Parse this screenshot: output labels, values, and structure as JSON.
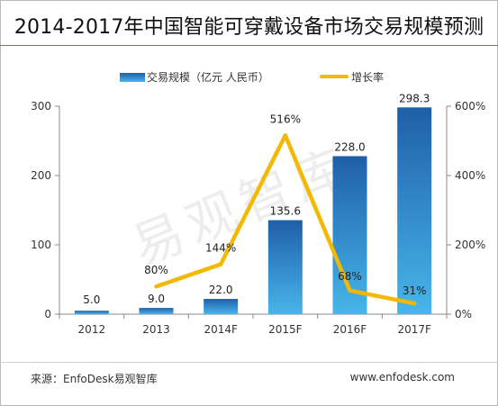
{
  "header": {
    "title": "2014-2017年中国智能可穿戴设备市场交易规模预测"
  },
  "footer": {
    "source": "来源：EnfoDesk易观智库",
    "site": "www.enfodesk.com"
  },
  "watermark": "易观智库",
  "colors": {
    "bar_top": "#1f5fa8",
    "bar_bottom": "#47b6ea",
    "line": "#f5b800",
    "divider": "#2f86c9"
  },
  "chart_data": {
    "type": "bar",
    "title": "2014-2017年中国智能可穿戴设备市场交易规模预测",
    "categories": [
      "2012",
      "2013",
      "2014F",
      "2015F",
      "2016F",
      "2017F"
    ],
    "series": [
      {
        "name": "交易规模（亿元 人民币）",
        "type": "bar",
        "axis": "left",
        "values": [
          5.0,
          9.0,
          22.0,
          135.6,
          228.0,
          298.3
        ],
        "labels": [
          "5.0",
          "9.0",
          "22.0",
          "135.6",
          "228.0",
          "298.3"
        ]
      },
      {
        "name": "增长率",
        "type": "line",
        "axis": "right",
        "values": [
          null,
          80,
          144,
          516,
          68,
          31
        ],
        "labels": [
          "",
          "80%",
          "144%",
          "516%",
          "68%",
          "31%"
        ]
      }
    ],
    "y_left": {
      "min": 0,
      "max": 300,
      "ticks": [
        "0",
        "100",
        "200",
        "300"
      ]
    },
    "y_right": {
      "min": 0,
      "max": 600,
      "ticks": [
        "0%",
        "200%",
        "400%",
        "600%"
      ]
    },
    "legend_position": "top",
    "grid": false
  }
}
